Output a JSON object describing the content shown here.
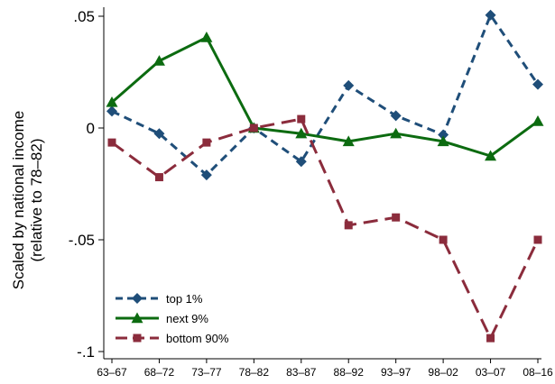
{
  "chart_data": {
    "type": "line",
    "title": "",
    "xlabel": "",
    "ylabel": "Scaled by national income",
    "ylabel2": "(relative to 78–82)",
    "ylim": [
      -0.105,
      0.055
    ],
    "yticks": [
      {
        "value": 0.05,
        "label": ".05"
      },
      {
        "value": 0,
        "label": "0"
      },
      {
        "value": -0.05,
        "label": "-.05"
      },
      {
        "value": -0.1,
        "label": "-.1"
      }
    ],
    "categories": [
      "63–67",
      "68–72",
      "73–77",
      "78–82",
      "83–87",
      "88–92",
      "93–97",
      "98–02",
      "03–07",
      "08–16"
    ],
    "grid": false,
    "legend_position": "bottom-left",
    "series": [
      {
        "name": "top 1%",
        "color": "#1f4e79",
        "marker": "diamond",
        "dash": "dash",
        "values": [
          0.0075,
          -0.0025,
          -0.021,
          0.0,
          -0.015,
          0.019,
          0.0055,
          -0.003,
          0.0505,
          0.0195
        ]
      },
      {
        "name": "next 9%",
        "color": "#0c6b10",
        "marker": "triangle",
        "dash": "solid",
        "values": [
          0.0115,
          0.03,
          0.0405,
          0.0,
          -0.0025,
          -0.006,
          -0.0025,
          -0.006,
          -0.0125,
          0.003
        ]
      },
      {
        "name": "bottom 90%",
        "color": "#8b2c3c",
        "marker": "square",
        "dash": "longdash",
        "values": [
          -0.0065,
          -0.022,
          -0.0065,
          0.0,
          0.004,
          -0.0435,
          -0.04,
          -0.05,
          -0.094,
          -0.05
        ]
      }
    ]
  }
}
